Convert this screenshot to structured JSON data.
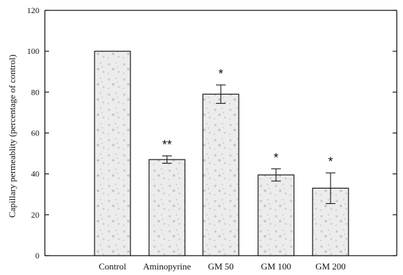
{
  "chart_data": {
    "type": "bar",
    "title": "",
    "xlabel": "",
    "ylabel": "Capillary permeablity (percentage of control)",
    "ylim": [
      0,
      120
    ],
    "yticks": [
      0,
      20,
      40,
      60,
      80,
      100,
      120
    ],
    "grid": false,
    "categories": [
      "Control",
      "Aminopyrine",
      "GM 50",
      "GM 100",
      "GM 200"
    ],
    "values": [
      100,
      47,
      79,
      39.5,
      33
    ],
    "errors": [
      0,
      1.8,
      4.5,
      3,
      7.5
    ],
    "significance": [
      "",
      "**",
      "*",
      "*",
      "*"
    ],
    "colors": {
      "bar_fill": "#e9e9e9",
      "bar_speckle": "#c8c8c8",
      "axis": "#111111"
    }
  }
}
